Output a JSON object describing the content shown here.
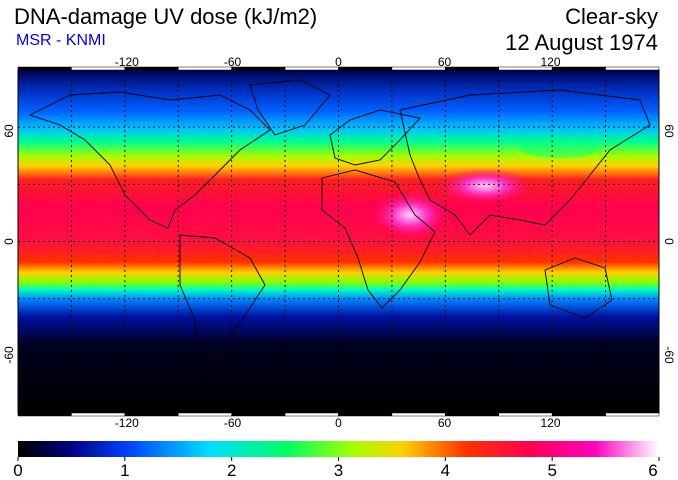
{
  "header": {
    "title": "DNA-damage UV dose (kJ/m2)",
    "source": "MSR - KNMI",
    "condition": "Clear-sky",
    "date": "12 August 1974"
  },
  "map": {
    "longitude_ticks": [
      "-120",
      "-60",
      "0",
      "60",
      "120"
    ],
    "latitude_ticks": [
      "60",
      "0",
      "-60"
    ],
    "longitude_range": [
      -180,
      180
    ],
    "latitude_range": [
      -90,
      90
    ],
    "grid": "dotted, every 30 degrees"
  },
  "colorbar": {
    "tick_labels": [
      "0",
      "1",
      "2",
      "3",
      "4",
      "5",
      "6"
    ],
    "range": [
      0,
      6
    ],
    "colors": [
      "#000000",
      "#0000a0",
      "#0050ff",
      "#00e0ff",
      "#00ff80",
      "#40ff00",
      "#e0ff00",
      "#ffc000",
      "#ff3000",
      "#ff0050",
      "#ff00c0",
      "#ffffff"
    ]
  }
}
